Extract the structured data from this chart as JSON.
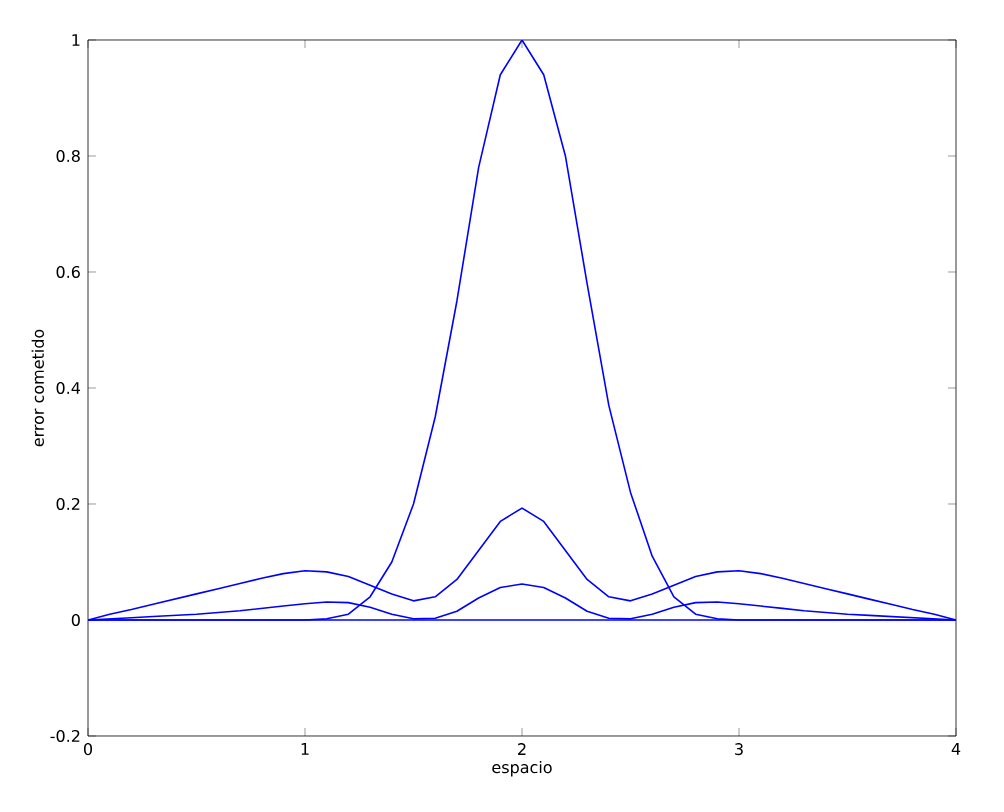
{
  "chart_data": {
    "type": "line",
    "xlabel": "espacio",
    "ylabel": "error cometido",
    "x": [
      0,
      0.1,
      0.2,
      0.3,
      0.4,
      0.5,
      0.6,
      0.7,
      0.8,
      0.9,
      1,
      1.1,
      1.2,
      1.3,
      1.4,
      1.5,
      1.6,
      1.7,
      1.8,
      1.9,
      2,
      2.1,
      2.2,
      2.3,
      2.4,
      2.5,
      2.6,
      2.7,
      2.8,
      2.9,
      3,
      3.1,
      3.2,
      3.3,
      3.4,
      3.5,
      3.6,
      3.7,
      3.8,
      3.9,
      4
    ],
    "xlim": [
      0,
      4
    ],
    "ylim": [
      -0.2,
      1
    ],
    "xticks": [
      0,
      1,
      2,
      3,
      4
    ],
    "yticks": [
      -0.2,
      0,
      0.2,
      0.4,
      0.6,
      0.8,
      1
    ],
    "series": [
      {
        "color": "#0000ff",
        "values": [
          0,
          0,
          0,
          0,
          0,
          0,
          0,
          0,
          0,
          0,
          0,
          0,
          0,
          0,
          0,
          0,
          0,
          0,
          0,
          0,
          0,
          0,
          0,
          0,
          0,
          0,
          0,
          0,
          0,
          0,
          0,
          0,
          0,
          0,
          0,
          0,
          0,
          0,
          0,
          0,
          0
        ]
      },
      {
        "color": "#0000ff",
        "values": [
          0,
          0,
          0,
          0,
          0,
          0,
          0,
          0,
          0,
          0,
          0,
          0.002,
          0.01,
          0.04,
          0.1,
          0.2,
          0.35,
          0.55,
          0.78,
          0.94,
          1,
          0.94,
          0.8,
          0.58,
          0.37,
          0.22,
          0.11,
          0.04,
          0.01,
          0.002,
          0,
          0,
          0,
          0,
          0,
          0,
          0,
          0,
          0,
          0,
          0
        ]
      },
      {
        "color": "#0000ff",
        "values": [
          0,
          0.01,
          0.018,
          0.027,
          0.036,
          0.045,
          0.054,
          0.063,
          0.072,
          0.08,
          0.085,
          0.083,
          0.075,
          0.06,
          0.045,
          0.033,
          0.04,
          0.07,
          0.12,
          0.17,
          0.193,
          0.17,
          0.12,
          0.07,
          0.04,
          0.033,
          0.045,
          0.06,
          0.075,
          0.083,
          0.085,
          0.08,
          0.072,
          0.063,
          0.054,
          0.045,
          0.036,
          0.027,
          0.018,
          0.01,
          0
        ]
      },
      {
        "color": "#0000ff",
        "values": [
          0,
          0.002,
          0.004,
          0.006,
          0.008,
          0.01,
          0.013,
          0.016,
          0.02,
          0.024,
          0.028,
          0.031,
          0.03,
          0.022,
          0.01,
          0.002,
          0.003,
          0.015,
          0.038,
          0.056,
          0.062,
          0.056,
          0.038,
          0.015,
          0.003,
          0.002,
          0.01,
          0.022,
          0.03,
          0.031,
          0.028,
          0.024,
          0.02,
          0.016,
          0.013,
          0.01,
          0.008,
          0.006,
          0.004,
          0.002,
          0
        ]
      }
    ]
  }
}
